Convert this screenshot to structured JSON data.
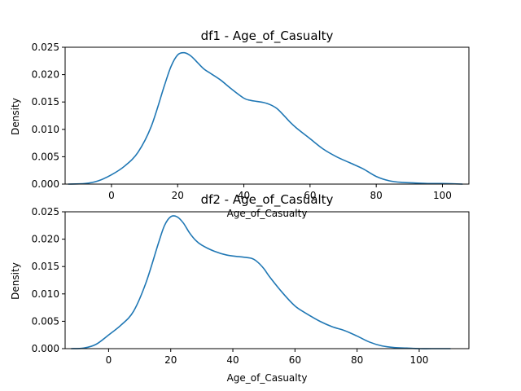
{
  "chart_data": [
    {
      "type": "line",
      "title": "df1 - Age_of_Casualty",
      "xlabel": "Age_of_Casualty",
      "ylabel": "Density",
      "xlim": [
        -14,
        108
      ],
      "ylim": [
        0,
        0.025
      ],
      "x_ticks": [
        0,
        20,
        40,
        60,
        80,
        100
      ],
      "y_ticks": [
        0.0,
        0.005,
        0.01,
        0.015,
        0.02,
        0.025
      ],
      "y_tick_labels": [
        "0.000",
        "0.005",
        "0.010",
        "0.015",
        "0.020",
        "0.025"
      ],
      "grid": false,
      "color": "#1f77b4",
      "x": [
        -13,
        -8,
        -4,
        0,
        4,
        8,
        12,
        16,
        18,
        20,
        22,
        24,
        26,
        28,
        30,
        33,
        36,
        40,
        42,
        44,
        46,
        48,
        50,
        52,
        54,
        56,
        60,
        64,
        68,
        72,
        76,
        80,
        84,
        88,
        92,
        96,
        100,
        106
      ],
      "y": [
        0.0,
        0.0001,
        0.0006,
        0.0017,
        0.0033,
        0.0058,
        0.0105,
        0.018,
        0.0215,
        0.0236,
        0.024,
        0.0234,
        0.0222,
        0.021,
        0.0202,
        0.019,
        0.0175,
        0.0157,
        0.0153,
        0.0151,
        0.0149,
        0.0145,
        0.0138,
        0.0126,
        0.0113,
        0.0102,
        0.0083,
        0.0064,
        0.005,
        0.0039,
        0.0028,
        0.0014,
        0.0006,
        0.0003,
        0.0002,
        0.0001,
        0.0001,
        0.0
      ]
    },
    {
      "type": "line",
      "title": "df2 - Age_of_Casualty",
      "xlabel": "Age_of_Casualty",
      "ylabel": "Density",
      "xlim": [
        -14,
        116
      ],
      "ylim": [
        0,
        0.025
      ],
      "x_ticks": [
        0,
        20,
        40,
        60,
        80,
        100
      ],
      "y_ticks": [
        0.0,
        0.005,
        0.01,
        0.015,
        0.02,
        0.025
      ],
      "y_tick_labels": [
        "0.000",
        "0.005",
        "0.010",
        "0.015",
        "0.020",
        "0.025"
      ],
      "grid": false,
      "color": "#1f77b4",
      "x": [
        -12,
        -8,
        -4,
        0,
        4,
        8,
        12,
        16,
        18,
        20,
        22,
        24,
        26,
        28,
        30,
        34,
        38,
        42,
        46,
        48,
        50,
        52,
        56,
        60,
        64,
        68,
        72,
        76,
        80,
        84,
        88,
        92,
        96,
        100,
        104,
        110
      ],
      "y": [
        0.0,
        0.0001,
        0.0008,
        0.0025,
        0.0043,
        0.0068,
        0.012,
        0.0192,
        0.0225,
        0.0241,
        0.0241,
        0.023,
        0.0212,
        0.0198,
        0.0189,
        0.0178,
        0.0171,
        0.0168,
        0.0165,
        0.0158,
        0.0146,
        0.013,
        0.0102,
        0.0078,
        0.0063,
        0.005,
        0.004,
        0.0033,
        0.0023,
        0.0012,
        0.0005,
        0.0002,
        0.0001,
        0.0,
        0.0,
        0.0
      ]
    }
  ]
}
